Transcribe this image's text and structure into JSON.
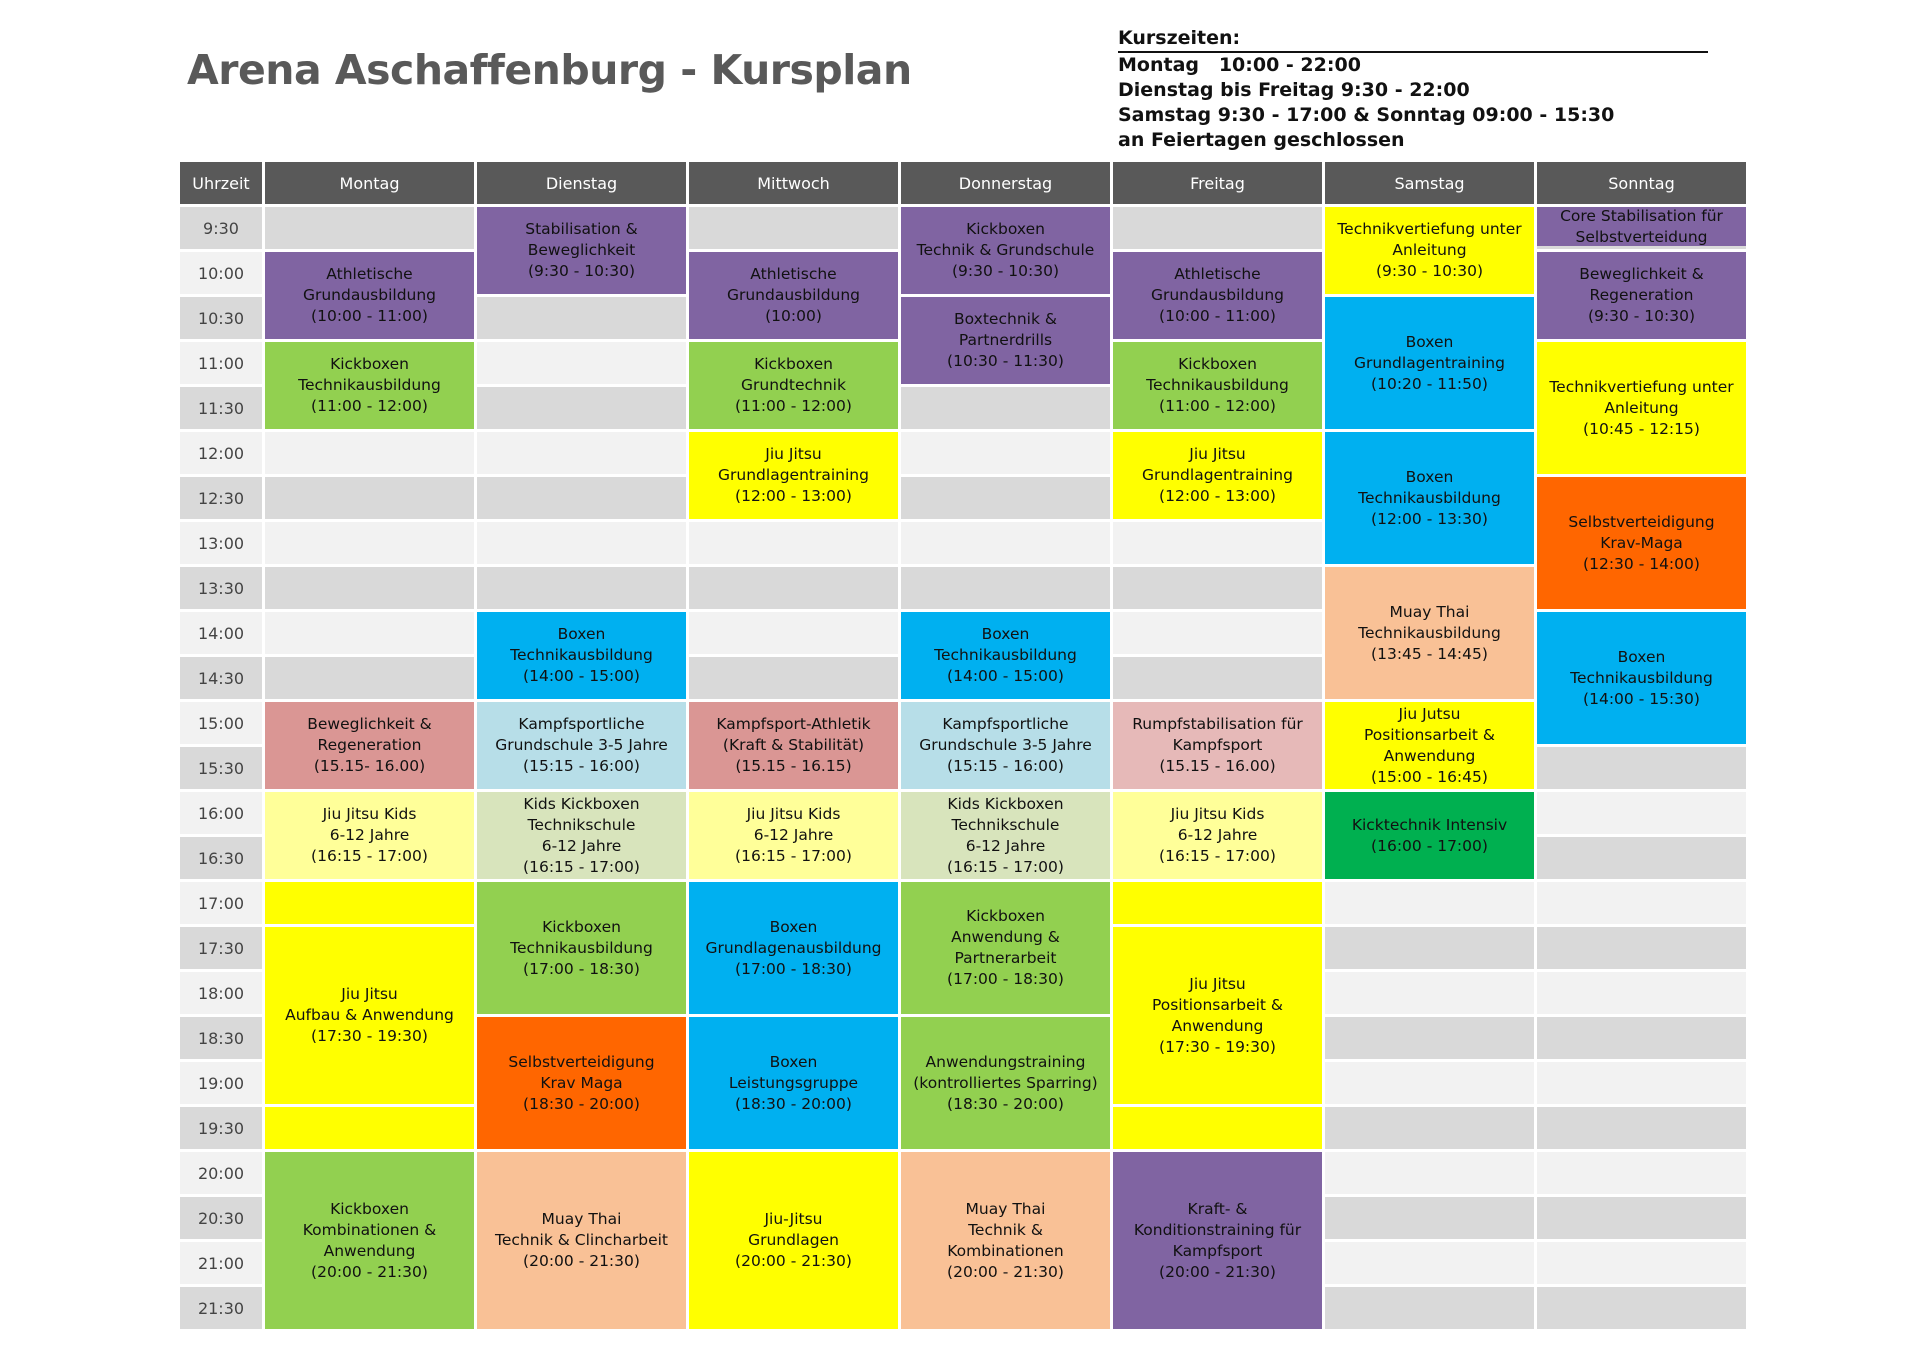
{
  "title": "Arena Aschaffenburg - Kursplan",
  "opening_hours": {
    "heading": "Kurszeiten:",
    "lines": [
      "Montag   10:00 - 22:00",
      "Dienstag bis Freitag 9:30 - 22:00",
      "Samstag 9:30 - 17:00 & Sonntag 09:00 - 15:30",
      "an Feiertagen geschlossen"
    ]
  },
  "header": [
    "Uhrzeit",
    "Montag",
    "Dienstag",
    "Mittwoch",
    "Donnerstag",
    "Freitag",
    "Samstag",
    "Sonntag"
  ],
  "times": [
    "9:30",
    "10:00",
    "10:30",
    "11:00",
    "11:30",
    "12:00",
    "12:30",
    "13:00",
    "13:30",
    "14:00",
    "14:30",
    "15:00",
    "15:30",
    "16:00",
    "16:30",
    "17:00",
    "17:30",
    "18:00",
    "18:30",
    "19:00",
    "19:30",
    "20:00",
    "20:30",
    "21:00",
    "21:30"
  ],
  "colors": {
    "header": "#595959",
    "row_dark": "#d9d9d9",
    "row_light": "#f2f2f2",
    "purple": "#8064a2",
    "green": "#92d050",
    "yellow": "#ffff00",
    "blue": "#00b0f0",
    "orange": "#ff6600",
    "peach": "#f9c196",
    "rose": "#da9694",
    "lightblue": "#b7dee8",
    "pink": "#e6b9b8",
    "lightyellow": "#ffff99",
    "sage": "#d8e4bc",
    "darkgreen": "#00b050"
  },
  "days": [
    {
      "day": "Montag",
      "events": [
        {
          "lines": [
            "Athletische",
            "Grundausbildung",
            "(10:00 - 11:00)"
          ],
          "color": "purple"
        },
        {
          "lines": [
            "Kickboxen",
            "Technikausbildung",
            "(11:00 - 12:00)"
          ],
          "color": "green"
        },
        {
          "lines": [
            "Beweglichkeit &",
            "Regeneration",
            "(15.15- 16.00)"
          ],
          "color": "rose"
        },
        {
          "lines": [
            "Jiu Jitsu Kids",
            "6-12 Jahre",
            "(16:15 - 17:00)"
          ],
          "color": "lightyellow"
        },
        {
          "lines": [
            "Jiu Jitsu",
            "Aufbau & Anwendung",
            "(17:30 - 19:30)"
          ],
          "color": "yellow"
        },
        {
          "lines": [
            "Kickboxen",
            "Kombinationen &",
            "Anwendung",
            "(20:00 - 21:30)"
          ],
          "color": "green"
        }
      ]
    },
    {
      "day": "Dienstag",
      "events": [
        {
          "lines": [
            "Stabilisation &",
            "Beweglichkeit",
            "(9:30 - 10:30)"
          ],
          "color": "purple"
        },
        {
          "lines": [
            "Boxen",
            "Technikausbildung",
            "(14:00 - 15:00)"
          ],
          "color": "blue"
        },
        {
          "lines": [
            "Kampfsportliche",
            "Grundschule 3-5 Jahre",
            "(15:15 - 16:00)"
          ],
          "color": "lightblue"
        },
        {
          "lines": [
            "Kids Kickboxen",
            "Technikschule",
            "6-12 Jahre",
            "(16:15 - 17:00)"
          ],
          "color": "sage"
        },
        {
          "lines": [
            "Kickboxen",
            "Technikausbildung",
            "(17:00 - 18:30)"
          ],
          "color": "green"
        },
        {
          "lines": [
            "Selbstverteidigung",
            "Krav Maga",
            "(18:30 - 20:00)"
          ],
          "color": "orange"
        },
        {
          "lines": [
            "Muay Thai",
            "Technik & Clincharbeit",
            "(20:00 - 21:30)"
          ],
          "color": "peach"
        }
      ]
    },
    {
      "day": "Mittwoch",
      "events": [
        {
          "lines": [
            "Athletische",
            "Grundausbildung",
            "(10:00)"
          ],
          "color": "purple"
        },
        {
          "lines": [
            "Kickboxen",
            "Grundtechnik",
            "(11:00 - 12:00)"
          ],
          "color": "green"
        },
        {
          "lines": [
            "Jiu Jitsu",
            "Grundlagentraining",
            "(12:00 - 13:00)"
          ],
          "color": "yellow"
        },
        {
          "lines": [
            "Kampfsport-Athletik",
            "(Kraft & Stabilität)",
            "(15.15 - 16.15)"
          ],
          "color": "rose"
        },
        {
          "lines": [
            "Jiu Jitsu Kids",
            "6-12 Jahre",
            "(16:15 - 17:00)"
          ],
          "color": "lightyellow"
        },
        {
          "lines": [
            "Boxen",
            "Grundlagenausbildung",
            "(17:00 - 18:30)"
          ],
          "color": "blue"
        },
        {
          "lines": [
            "Boxen",
            "Leistungsgruppe",
            "(18:30 - 20:00)"
          ],
          "color": "blue"
        },
        {
          "lines": [
            "Jiu-Jitsu",
            "Grundlagen",
            "(20:00 - 21:30)"
          ],
          "color": "yellow"
        }
      ]
    },
    {
      "day": "Donnerstag",
      "events": [
        {
          "lines": [
            "Kickboxen",
            "Technik & Grundschule",
            "(9:30 - 10:30)"
          ],
          "color": "purple"
        },
        {
          "lines": [
            "Boxtechnik &",
            "Partnerdrills",
            "(10:30 - 11:30)"
          ],
          "color": "purple"
        },
        {
          "lines": [
            "Boxen",
            "Technikausbildung",
            "(14:00 - 15:00)"
          ],
          "color": "blue"
        },
        {
          "lines": [
            "Kampfsportliche",
            "Grundschule 3-5 Jahre",
            "(15:15 - 16:00)"
          ],
          "color": "lightblue"
        },
        {
          "lines": [
            "Kids Kickboxen",
            "Technikschule",
            "6-12 Jahre",
            "(16:15 - 17:00)"
          ],
          "color": "sage"
        },
        {
          "lines": [
            "Kickboxen",
            "Anwendung &",
            "Partnerarbeit",
            "(17:00 - 18:30)"
          ],
          "color": "green"
        },
        {
          "lines": [
            "Anwendungstraining",
            "(kontrolliertes Sparring)",
            "(18:30 - 20:00)"
          ],
          "color": "green"
        },
        {
          "lines": [
            "Muay Thai",
            "Technik &",
            "Kombinationen",
            "(20:00 - 21:30)"
          ],
          "color": "peach"
        }
      ]
    },
    {
      "day": "Freitag",
      "events": [
        {
          "lines": [
            "Athletische",
            "Grundausbildung",
            "(10:00 - 11:00)"
          ],
          "color": "purple"
        },
        {
          "lines": [
            "Kickboxen",
            "Technikausbildung",
            "(11:00 - 12:00)"
          ],
          "color": "green"
        },
        {
          "lines": [
            "Jiu Jitsu",
            "Grundlagentraining",
            "(12:00 - 13:00)"
          ],
          "color": "yellow"
        },
        {
          "lines": [
            "Rumpfstabilisation für",
            "Kampfsport",
            "(15.15 - 16.00)"
          ],
          "color": "pink"
        },
        {
          "lines": [
            "Jiu Jitsu Kids",
            "6-12 Jahre",
            "(16:15 - 17:00)"
          ],
          "color": "lightyellow"
        },
        {
          "lines": [
            "Jiu Jitsu",
            "Positionsarbeit &",
            "Anwendung",
            "(17:30 - 19:30)"
          ],
          "color": "yellow"
        },
        {
          "lines": [
            "Kraft- &",
            "Konditionstraining für",
            "Kampfsport",
            "(20:00 - 21:30)"
          ],
          "color": "purple"
        }
      ]
    },
    {
      "day": "Samstag",
      "events": [
        {
          "lines": [
            "Technikvertiefung unter",
            "Anleitung",
            "(9:30 - 10:30)"
          ],
          "color": "yellow"
        },
        {
          "lines": [
            "Boxen",
            "Grundlagentraining",
            "(10:20 - 11:50)"
          ],
          "color": "blue"
        },
        {
          "lines": [
            "Boxen",
            "Technikausbildung",
            "(12:00 - 13:30)"
          ],
          "color": "blue"
        },
        {
          "lines": [
            "Muay Thai",
            "Technikausbildung",
            "(13:45 - 14:45)"
          ],
          "color": "peach"
        },
        {
          "lines": [
            "Jiu Jutsu",
            "Positionsarbeit &",
            "Anwendung",
            "(15:00 - 16:45)"
          ],
          "color": "yellow"
        },
        {
          "lines": [
            "Kicktechnik Intensiv",
            "(16:00 - 17:00)"
          ],
          "color": "darkgreen"
        }
      ]
    },
    {
      "day": "Sonntag",
      "events": [
        {
          "lines": [
            "Core Stabilisation für",
            "Selbstverteidung"
          ],
          "color": "purple"
        },
        {
          "lines": [
            "Beweglichkeit &",
            "Regeneration",
            "(9:30 - 10:30)"
          ],
          "color": "purple"
        },
        {
          "lines": [
            "Technikvertiefung unter",
            "Anleitung",
            "(10:45 - 12:15)"
          ],
          "color": "yellow"
        },
        {
          "lines": [
            "Selbstverteidigung",
            "Krav-Maga",
            "(12:30 - 14:00)"
          ],
          "color": "orange"
        },
        {
          "lines": [
            "Boxen",
            "Technikausbildung",
            "(14:00 - 15:30)"
          ],
          "color": "blue"
        }
      ]
    }
  ]
}
